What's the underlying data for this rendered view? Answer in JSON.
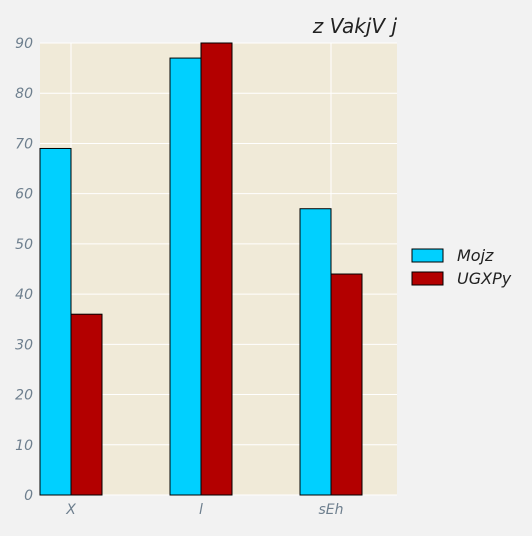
{
  "chart_data": {
    "type": "bar",
    "title": "z VakjV j",
    "xlabel": "",
    "ylabel": "",
    "categories": [
      "X",
      "l",
      "sEh"
    ],
    "series": [
      {
        "name": "Mojz",
        "values": [
          69,
          87,
          57
        ],
        "color": "#00d0ff"
      },
      {
        "name": "UGXPy",
        "values": [
          36,
          90,
          44
        ],
        "color": "#b30000"
      }
    ],
    "ylim": [
      0,
      90
    ],
    "yticks": [
      0,
      10,
      20,
      30,
      40,
      50,
      60,
      70,
      80,
      90
    ],
    "grid": true,
    "legend": "right",
    "plot_background": "#f0ead8"
  }
}
